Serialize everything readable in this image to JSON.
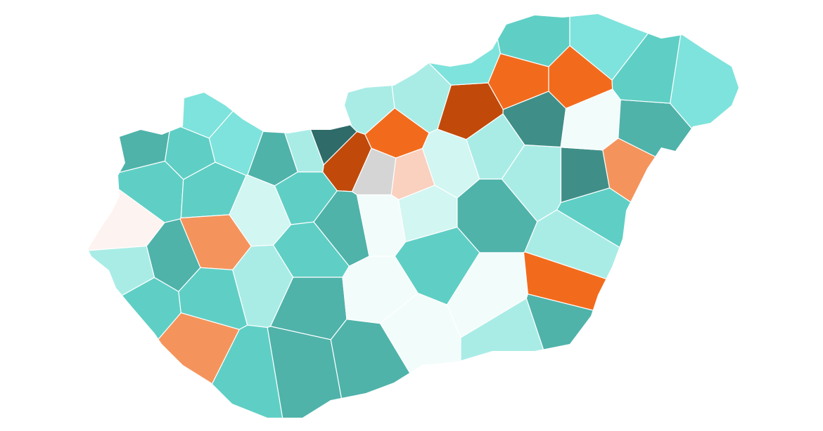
{
  "regions": [
    {
      "color": "#7ee3dc"
    },
    {
      "color": "#4fb3aa"
    },
    {
      "color": "#5fcfc5"
    },
    {
      "color": "#7ee3dc"
    },
    {
      "color": "#4fb3aa"
    },
    {
      "color": "#2f6b68"
    },
    {
      "color": "#c14a0b"
    },
    {
      "color": "#a9ece6"
    },
    {
      "color": "#5fcfc5"
    },
    {
      "color": "#5fcfc5"
    },
    {
      "color": "#d2f6f2"
    },
    {
      "color": "#5fcfc5"
    },
    {
      "color": "#4fb3aa"
    },
    {
      "color": "#fdf3f0"
    },
    {
      "color": "#f4945c"
    },
    {
      "color": "#4fb3aa"
    },
    {
      "color": "#a9ece6"
    },
    {
      "color": "#5fcfc5"
    },
    {
      "color": "#5fcfc5"
    },
    {
      "color": "#a9ece6"
    },
    {
      "color": "#5fcfc5"
    },
    {
      "color": "#4fb3aa"
    },
    {
      "color": "#f4945c"
    },
    {
      "color": "#5fcfc5"
    },
    {
      "color": "#4fb3aa"
    },
    {
      "color": "#4fb3aa"
    },
    {
      "color": "#f2fcfb"
    },
    {
      "color": "#f2fcfb"
    },
    {
      "color": "#d5d5d5"
    },
    {
      "color": "#f26b1d"
    },
    {
      "color": "#a9ece6"
    },
    {
      "color": "#a9ece6"
    },
    {
      "color": "#c14a0b"
    },
    {
      "color": "#d2f6f2"
    },
    {
      "color": "#d2f6f2"
    },
    {
      "color": "#4fb3aa"
    },
    {
      "color": "#5fcfc5"
    },
    {
      "color": "#f2fcfb"
    },
    {
      "color": "#f2fcfb"
    },
    {
      "color": "#a9ece6"
    },
    {
      "color": "#4fb3aa"
    },
    {
      "color": "#f26b1d"
    },
    {
      "color": "#a9ece6"
    },
    {
      "color": "#3f8f88"
    },
    {
      "color": "#5fcfc5"
    },
    {
      "color": "#3f8f88"
    },
    {
      "color": "#f26b1d"
    },
    {
      "color": "#f26b1d"
    },
    {
      "color": "#5fcfc5"
    },
    {
      "color": "#7ee3dc"
    },
    {
      "color": "#f2fcfb"
    },
    {
      "color": "#4fb3aa"
    },
    {
      "color": "#7ee3dc"
    },
    {
      "color": "#5fcfc5"
    },
    {
      "color": "#f4945c"
    },
    {
      "color": "#a9ece6"
    },
    {
      "color": "#7ee3dc"
    },
    {
      "color": "#a9ece6"
    },
    {
      "color": "#fad0bf"
    }
  ]
}
